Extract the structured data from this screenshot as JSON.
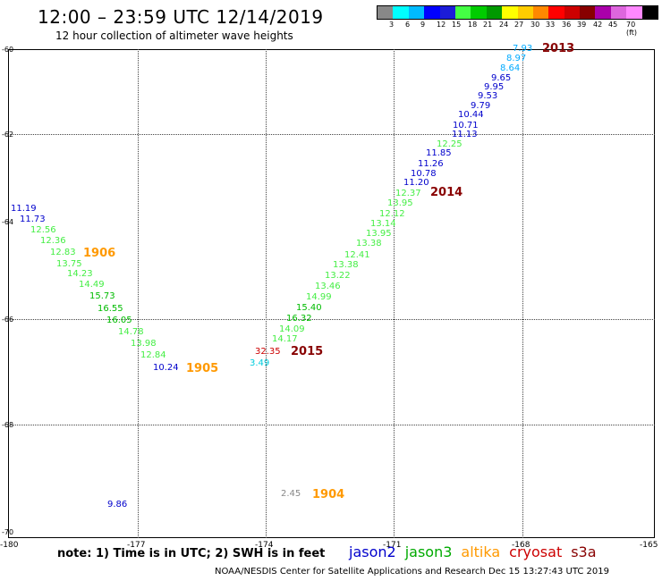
{
  "header": {
    "title": "12:00 – 23:59 UTC 12/14/2019",
    "subtitle": "12 hour collection of altimeter wave heights"
  },
  "colorbar": {
    "colors": [
      "#888888",
      "#00ffff",
      "#00bbff",
      "#0000ff",
      "#1c1cd8",
      "#44ff44",
      "#00cc00",
      "#009900",
      "#ffff00",
      "#ffcc00",
      "#ff8800",
      "#ff0000",
      "#cc0000",
      "#880000",
      "#aa00aa",
      "#dd66dd",
      "#ff88ff",
      "#000000"
    ],
    "labels": [
      "3",
      "6",
      "9",
      "12",
      "15",
      "18",
      "21",
      "24",
      "27",
      "30",
      "33",
      "36",
      "39",
      "42",
      "45",
      "70 (ft)"
    ]
  },
  "axes": {
    "lat_labels": [
      "-60",
      "-62",
      "-64",
      "-66",
      "-68",
      "-70"
    ],
    "lon_labels": [
      "-180",
      "-177",
      "-174",
      "-171",
      "-168",
      "-165"
    ]
  },
  "map": {
    "satellites": [
      {
        "label": "2013",
        "color": "#880000"
      },
      {
        "label": "2014",
        "color": "#880000"
      },
      {
        "label": "2015",
        "color": "#880000"
      },
      {
        "label": "1906",
        "color": "#ff9900"
      },
      {
        "label": "1905",
        "color": "#ff9900"
      },
      {
        "label": "1904",
        "color": "#ff9900"
      }
    ],
    "wave_heights": [
      {
        "v": "7.93",
        "c": "#00aaff"
      },
      {
        "v": "8.97",
        "c": "#00aaff"
      },
      {
        "v": "8.64",
        "c": "#00aaff"
      },
      {
        "v": "9.65",
        "c": "#0000cc"
      },
      {
        "v": "9.95",
        "c": "#0000cc"
      },
      {
        "v": "9.53",
        "c": "#0000cc"
      },
      {
        "v": "9.79",
        "c": "#0000cc"
      },
      {
        "v": "10.44",
        "c": "#0000cc"
      },
      {
        "v": "10.71",
        "c": "#0000cc"
      },
      {
        "v": "11.13",
        "c": "#0000cc"
      },
      {
        "v": "12.25",
        "c": "#44ee44"
      },
      {
        "v": "11.85",
        "c": "#0000cc"
      },
      {
        "v": "11.26",
        "c": "#0000cc"
      },
      {
        "v": "10.78",
        "c": "#0000cc"
      },
      {
        "v": "11.20",
        "c": "#0000cc"
      },
      {
        "v": "12.37",
        "c": "#44ee44"
      },
      {
        "v": "13.95",
        "c": "#44ee44"
      },
      {
        "v": "12.12",
        "c": "#44ee44"
      },
      {
        "v": "13.14",
        "c": "#44ee44"
      },
      {
        "v": "13.95",
        "c": "#44ee44"
      },
      {
        "v": "13.38",
        "c": "#44ee44"
      },
      {
        "v": "12.41",
        "c": "#44ee44"
      },
      {
        "v": "13.38",
        "c": "#44ee44"
      },
      {
        "v": "13.22",
        "c": "#44ee44"
      },
      {
        "v": "13.46",
        "c": "#44ee44"
      },
      {
        "v": "14.99",
        "c": "#44ee44"
      },
      {
        "v": "15.40",
        "c": "#00bb00"
      },
      {
        "v": "16.32",
        "c": "#00bb00"
      },
      {
        "v": "14.09",
        "c": "#44ee44"
      },
      {
        "v": "14.17",
        "c": "#44ee44"
      },
      {
        "v": "32.35",
        "c": "#cc0000"
      },
      {
        "v": "3.49",
        "c": "#00ccdd"
      },
      {
        "v": "11.19",
        "c": "#0000cc"
      },
      {
        "v": "11.73",
        "c": "#0000cc"
      },
      {
        "v": "12.56",
        "c": "#44ee44"
      },
      {
        "v": "12.36",
        "c": "#44ee44"
      },
      {
        "v": "12.83",
        "c": "#44ee44"
      },
      {
        "v": "13.75",
        "c": "#44ee44"
      },
      {
        "v": "14.23",
        "c": "#44ee44"
      },
      {
        "v": "14.49",
        "c": "#44ee44"
      },
      {
        "v": "15.73",
        "c": "#00bb00"
      },
      {
        "v": "16.55",
        "c": "#00bb00"
      },
      {
        "v": "16.05",
        "c": "#00bb00"
      },
      {
        "v": "14.78",
        "c": "#44ee44"
      },
      {
        "v": "13.98",
        "c": "#44ee44"
      },
      {
        "v": "12.84",
        "c": "#44ee44"
      },
      {
        "v": "10.24",
        "c": "#0000cc"
      },
      {
        "v": "2.45",
        "c": "#888888"
      },
      {
        "v": "9.86",
        "c": "#0000cc"
      }
    ]
  },
  "note": "note: 1) Time is in UTC; 2) SWH is in feet",
  "legend": [
    {
      "name": "jason2",
      "color": "#0000cc"
    },
    {
      "name": "jason3",
      "color": "#00aa00"
    },
    {
      "name": "altika",
      "color": "#ff9900"
    },
    {
      "name": "cryosat",
      "color": "#cc0000"
    },
    {
      "name": "s3a",
      "color": "#880000"
    }
  ],
  "footer": "NOAA/NESDIS Center for Satellite Applications and Research    Dec 15 13:27:43 UTC 2019"
}
